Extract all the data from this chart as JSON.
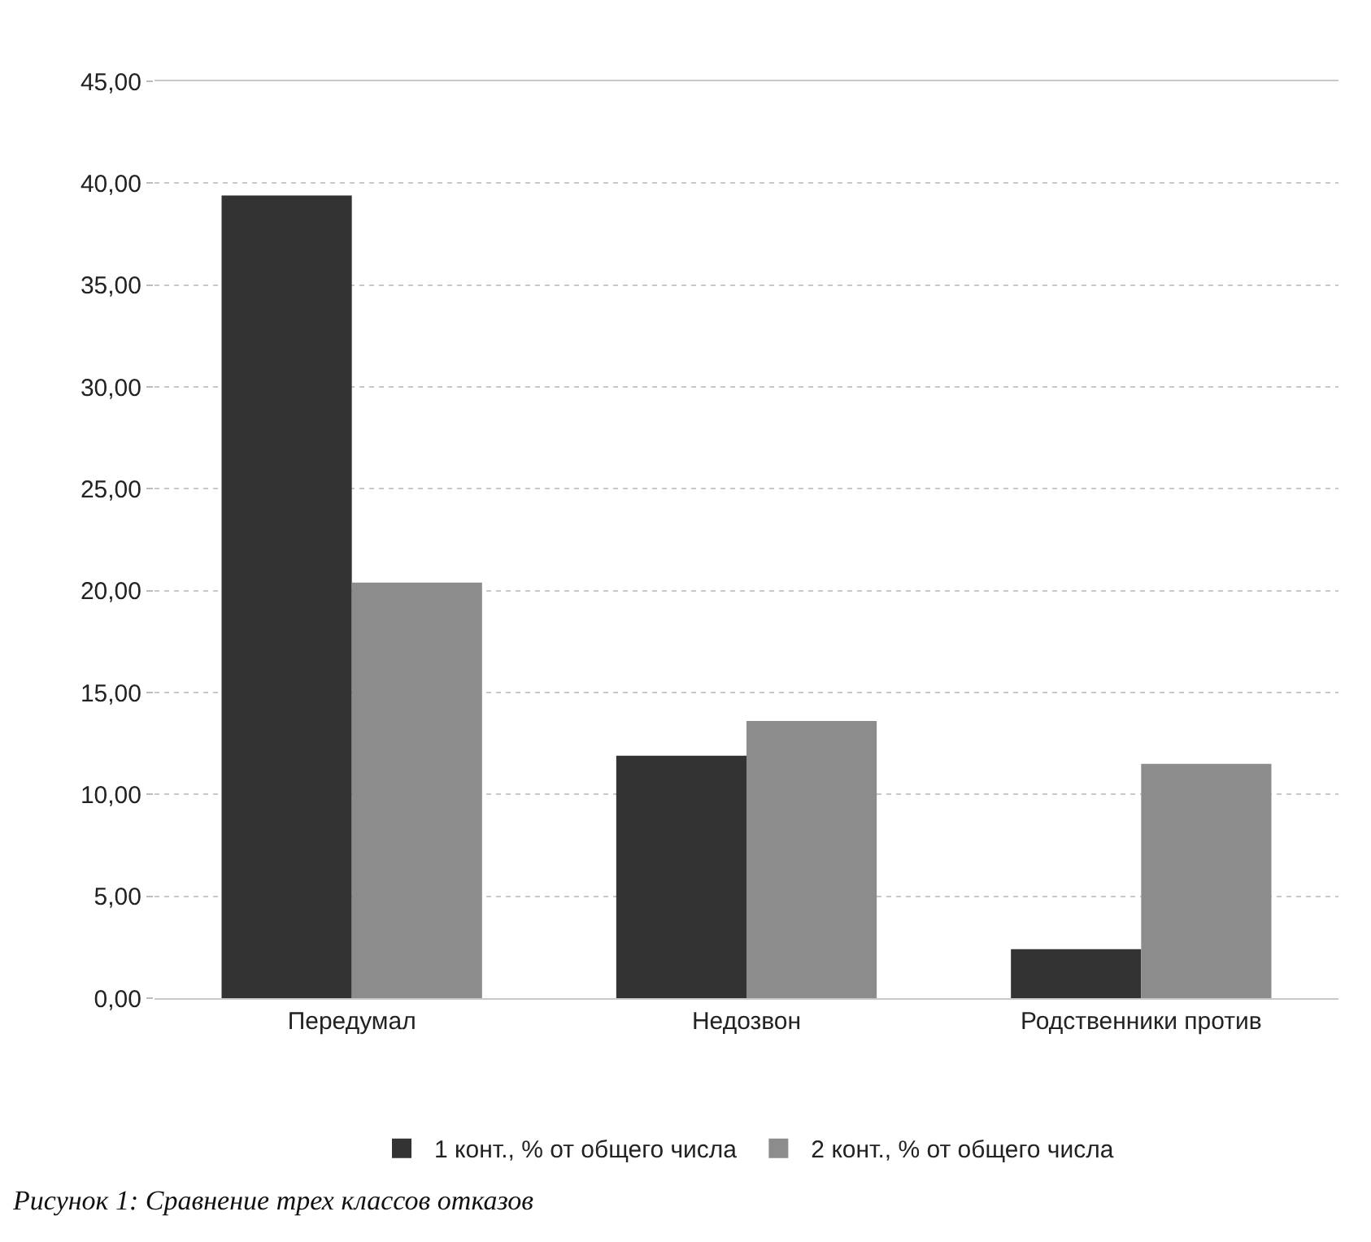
{
  "chart_data": {
    "type": "bar",
    "categories": [
      "Передумал",
      "Недозвон",
      "Родственники против"
    ],
    "series": [
      {
        "name": "1 конт., % от общего числа",
        "color": "#333333",
        "values": [
          39.4,
          11.9,
          2.4
        ]
      },
      {
        "name": "2 конт., % от общего числа",
        "color": "#8c8c8c",
        "values": [
          20.4,
          13.6,
          11.5
        ]
      }
    ],
    "ylim": [
      0,
      45
    ],
    "yticks": [
      {
        "value": 0,
        "label": "0,00"
      },
      {
        "value": 5,
        "label": "5,00"
      },
      {
        "value": 10,
        "label": "10,00"
      },
      {
        "value": 15,
        "label": "15,00"
      },
      {
        "value": 20,
        "label": "20,00"
      },
      {
        "value": 25,
        "label": "25,00"
      },
      {
        "value": 30,
        "label": "30,00"
      },
      {
        "value": 35,
        "label": "35,00"
      },
      {
        "value": 40,
        "label": "40,00"
      },
      {
        "value": 45,
        "label": "45,00"
      }
    ],
    "grid": "y",
    "legend": "bottom",
    "annotations": [
      "Рисунок 1: Сравнение трех классов отказов"
    ]
  }
}
